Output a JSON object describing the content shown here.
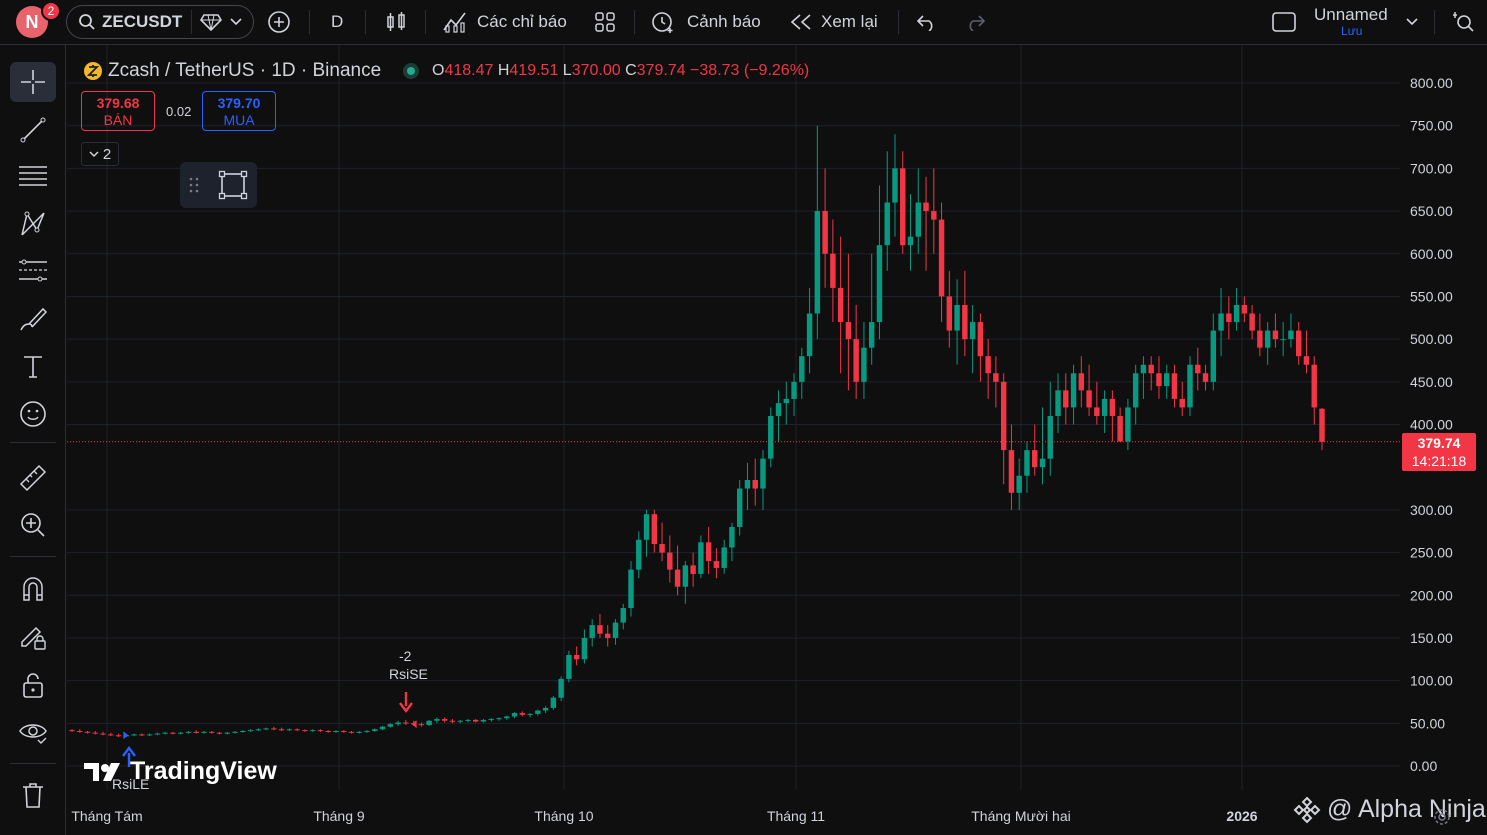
{
  "topbar": {
    "avatar_letter": "N",
    "notification_count": "2",
    "symbol": "ZECUSDT",
    "interval": "D",
    "indicators_label": "Các chỉ báo",
    "alerts_label": "Cảnh báo",
    "replay_label": "Xem lại",
    "layout_name": "Unnamed",
    "save_label": "Lưu"
  },
  "legend": {
    "title": "Zcash / TetherUS · 1D · Binance",
    "open_label": "O",
    "open": "418.47",
    "high_label": "H",
    "high": "419.51",
    "low_label": "L",
    "low": "370.00",
    "close_label": "C",
    "close": "379.74",
    "change": "−38.73 (−9.26%)",
    "sell_price": "379.68",
    "sell_label": "BÁN",
    "spread": "0.02",
    "buy_price": "379.70",
    "buy_label": "MUA",
    "collapse_count": "2"
  },
  "current_price": {
    "value": "379.74",
    "countdown": "14:21:18"
  },
  "annotations": {
    "sell_signal_count": "-2",
    "sell_signal_name": "RsiSE",
    "buy_signal_name": "RsiLE"
  },
  "watermark": {
    "brand": "TradingView",
    "credit": "@ Alpha Ninja"
  },
  "colors": {
    "up": "#089981",
    "down": "#f23645",
    "background": "#0f0f0f",
    "grid": "#1e222d",
    "buy": "#2962ff"
  },
  "chart_data": {
    "type": "candlestick",
    "title": "Zcash / TetherUS · 1D · Binance",
    "y_ticks": [
      "800.00",
      "750.00",
      "700.00",
      "650.00",
      "600.00",
      "550.00",
      "500.00",
      "450.00",
      "400.00",
      "300.00",
      "250.00",
      "200.00",
      "150.00",
      "100.00",
      "50.00",
      "0.00"
    ],
    "x_ticks": [
      "Tháng Tám",
      "Tháng 9",
      "Tháng 10",
      "Tháng 11",
      "Tháng Mười hai",
      "2026"
    ],
    "ylim": [
      0,
      800
    ],
    "candles": [
      [
        42,
        43,
        40,
        41
      ],
      [
        41,
        43,
        39,
        40
      ],
      [
        40,
        41,
        38,
        39
      ],
      [
        39,
        41,
        37,
        38
      ],
      [
        38,
        40,
        36,
        37
      ],
      [
        37,
        39,
        35,
        36
      ],
      [
        36,
        38,
        34,
        35
      ],
      [
        35,
        37,
        34,
        36
      ],
      [
        36,
        38,
        35,
        37
      ],
      [
        37,
        38,
        35,
        36
      ],
      [
        36,
        38,
        35,
        37
      ],
      [
        37,
        39,
        36,
        38
      ],
      [
        38,
        40,
        37,
        39
      ],
      [
        39,
        40,
        37,
        38
      ],
      [
        38,
        40,
        37,
        39
      ],
      [
        39,
        41,
        38,
        40
      ],
      [
        40,
        42,
        38,
        39
      ],
      [
        39,
        41,
        38,
        40
      ],
      [
        40,
        41,
        38,
        39
      ],
      [
        39,
        40,
        37,
        38
      ],
      [
        38,
        40,
        37,
        39
      ],
      [
        39,
        41,
        38,
        40
      ],
      [
        40,
        42,
        39,
        41
      ],
      [
        41,
        43,
        40,
        42
      ],
      [
        42,
        44,
        41,
        43
      ],
      [
        43,
        45,
        42,
        44
      ],
      [
        44,
        46,
        42,
        43
      ],
      [
        43,
        45,
        41,
        42
      ],
      [
        42,
        44,
        41,
        43
      ],
      [
        43,
        44,
        41,
        42
      ],
      [
        42,
        43,
        40,
        41
      ],
      [
        41,
        43,
        40,
        42
      ],
      [
        42,
        43,
        40,
        41
      ],
      [
        41,
        42,
        39,
        40
      ],
      [
        40,
        42,
        39,
        41
      ],
      [
        41,
        42,
        39,
        40
      ],
      [
        40,
        41,
        38,
        39
      ],
      [
        39,
        41,
        38,
        40
      ],
      [
        40,
        42,
        39,
        41
      ],
      [
        41,
        44,
        40,
        43
      ],
      [
        43,
        47,
        42,
        46
      ],
      [
        46,
        50,
        45,
        49
      ],
      [
        49,
        53,
        47,
        51
      ],
      [
        51,
        54,
        48,
        50
      ],
      [
        50,
        53,
        47,
        49
      ],
      [
        49,
        51,
        46,
        48
      ],
      [
        48,
        54,
        47,
        53
      ],
      [
        53,
        57,
        50,
        55
      ],
      [
        55,
        57,
        51,
        53
      ],
      [
        53,
        55,
        50,
        52
      ],
      [
        52,
        54,
        50,
        53
      ],
      [
        53,
        55,
        51,
        54
      ],
      [
        54,
        55,
        51,
        52
      ],
      [
        52,
        55,
        51,
        54
      ],
      [
        54,
        56,
        52,
        55
      ],
      [
        55,
        57,
        53,
        56
      ],
      [
        56,
        59,
        54,
        58
      ],
      [
        58,
        63,
        56,
        62
      ],
      [
        62,
        64,
        58,
        60
      ],
      [
        60,
        62,
        57,
        61
      ],
      [
        61,
        66,
        59,
        65
      ],
      [
        65,
        70,
        62,
        68
      ],
      [
        68,
        82,
        66,
        80
      ],
      [
        80,
        105,
        76,
        102
      ],
      [
        102,
        135,
        98,
        130
      ],
      [
        130,
        140,
        118,
        125
      ],
      [
        125,
        160,
        120,
        150
      ],
      [
        150,
        172,
        140,
        165
      ],
      [
        165,
        178,
        150,
        155
      ],
      [
        155,
        165,
        140,
        150
      ],
      [
        150,
        172,
        142,
        168
      ],
      [
        168,
        190,
        160,
        185
      ],
      [
        185,
        240,
        175,
        230
      ],
      [
        230,
        275,
        220,
        265
      ],
      [
        265,
        300,
        245,
        295
      ],
      [
        295,
        300,
        250,
        260
      ],
      [
        260,
        285,
        240,
        250
      ],
      [
        250,
        270,
        215,
        230
      ],
      [
        230,
        258,
        200,
        210
      ],
      [
        210,
        240,
        190,
        235
      ],
      [
        235,
        250,
        210,
        225
      ],
      [
        225,
        270,
        220,
        262
      ],
      [
        262,
        280,
        225,
        240
      ],
      [
        240,
        255,
        220,
        232
      ],
      [
        232,
        265,
        225,
        256
      ],
      [
        256,
        285,
        240,
        280
      ],
      [
        280,
        335,
        270,
        325
      ],
      [
        325,
        355,
        300,
        335
      ],
      [
        335,
        360,
        305,
        325
      ],
      [
        325,
        370,
        300,
        360
      ],
      [
        360,
        420,
        350,
        410
      ],
      [
        410,
        440,
        380,
        425
      ],
      [
        425,
        450,
        400,
        430
      ],
      [
        430,
        460,
        410,
        450
      ],
      [
        450,
        490,
        430,
        480
      ],
      [
        480,
        560,
        460,
        530
      ],
      [
        530,
        750,
        500,
        650
      ],
      [
        650,
        700,
        560,
        600
      ],
      [
        600,
        640,
        520,
        560
      ],
      [
        560,
        620,
        460,
        520
      ],
      [
        520,
        600,
        440,
        500
      ],
      [
        500,
        540,
        430,
        450
      ],
      [
        450,
        520,
        430,
        490
      ],
      [
        490,
        600,
        470,
        520
      ],
      [
        520,
        680,
        500,
        610
      ],
      [
        610,
        720,
        580,
        660
      ],
      [
        660,
        740,
        620,
        700
      ],
      [
        700,
        720,
        600,
        610
      ],
      [
        610,
        670,
        580,
        620
      ],
      [
        620,
        700,
        600,
        660
      ],
      [
        660,
        690,
        580,
        650
      ],
      [
        650,
        700,
        600,
        640
      ],
      [
        640,
        660,
        520,
        550
      ],
      [
        550,
        580,
        490,
        510
      ],
      [
        510,
        570,
        470,
        540
      ],
      [
        540,
        580,
        480,
        500
      ],
      [
        500,
        540,
        460,
        520
      ],
      [
        520,
        530,
        450,
        480
      ],
      [
        480,
        500,
        430,
        460
      ],
      [
        460,
        480,
        420,
        450
      ],
      [
        450,
        460,
        330,
        370
      ],
      [
        370,
        400,
        300,
        320
      ],
      [
        320,
        360,
        300,
        340
      ],
      [
        340,
        380,
        320,
        370
      ],
      [
        370,
        400,
        340,
        350
      ],
      [
        350,
        420,
        330,
        360
      ],
      [
        360,
        450,
        340,
        410
      ],
      [
        410,
        460,
        390,
        440
      ],
      [
        440,
        460,
        400,
        420
      ],
      [
        420,
        470,
        400,
        460
      ],
      [
        460,
        480,
        420,
        440
      ],
      [
        440,
        470,
        410,
        420
      ],
      [
        420,
        450,
        400,
        410
      ],
      [
        410,
        440,
        390,
        430
      ],
      [
        430,
        440,
        380,
        410
      ],
      [
        410,
        420,
        380,
        380
      ],
      [
        380,
        430,
        370,
        420
      ],
      [
        420,
        470,
        400,
        460
      ],
      [
        460,
        480,
        430,
        470
      ],
      [
        470,
        480,
        440,
        460
      ],
      [
        460,
        480,
        430,
        445
      ],
      [
        445,
        470,
        430,
        460
      ],
      [
        460,
        470,
        420,
        430
      ],
      [
        430,
        450,
        410,
        420
      ],
      [
        420,
        480,
        410,
        470
      ],
      [
        470,
        490,
        440,
        460
      ],
      [
        460,
        470,
        440,
        450
      ],
      [
        450,
        530,
        440,
        510
      ],
      [
        510,
        560,
        480,
        530
      ],
      [
        530,
        550,
        500,
        520
      ],
      [
        520,
        560,
        510,
        540
      ],
      [
        540,
        550,
        520,
        530
      ],
      [
        530,
        540,
        500,
        510
      ],
      [
        510,
        530,
        480,
        490
      ],
      [
        490,
        520,
        470,
        510
      ],
      [
        510,
        530,
        490,
        500
      ],
      [
        500,
        520,
        480,
        500
      ],
      [
        500,
        530,
        490,
        510
      ],
      [
        510,
        520,
        470,
        480
      ],
      [
        480,
        510,
        460,
        470
      ],
      [
        470,
        480,
        400,
        420
      ],
      [
        418.47,
        419.51,
        370,
        379.74
      ]
    ]
  }
}
